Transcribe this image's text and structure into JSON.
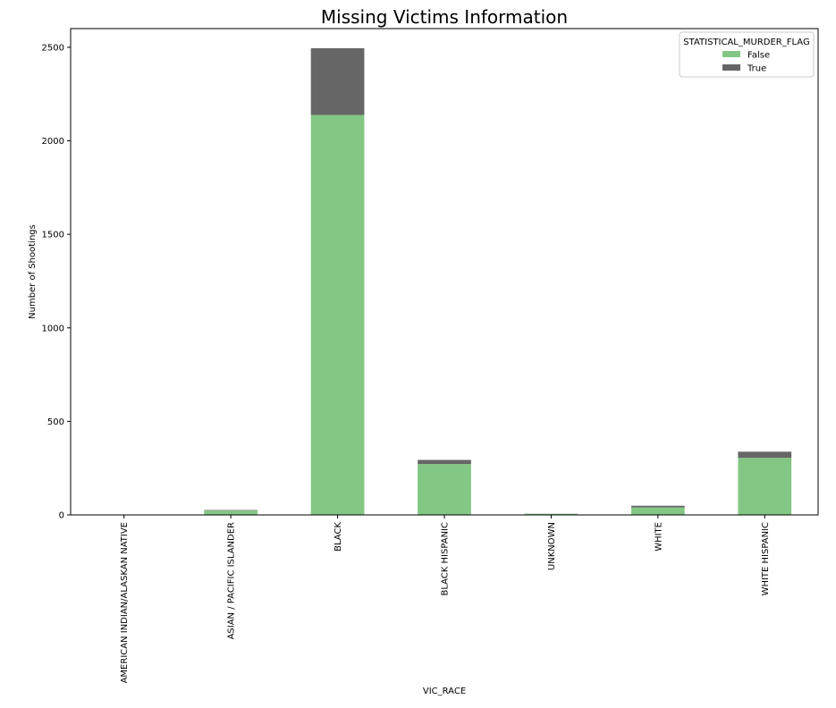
{
  "chart_data": {
    "type": "bar",
    "stacked": true,
    "title": "Missing Victims Information",
    "xlabel": "VIC_RACE",
    "ylabel": "Number of Shootings",
    "ylim": [
      0,
      2600
    ],
    "yticks": [
      0,
      500,
      1000,
      1500,
      2000,
      2500
    ],
    "grid": false,
    "legend_position": "top-right",
    "legend_title": "STATISTICAL_MURDER_FLAG",
    "categories": [
      "AMERICAN INDIAN/ALASKAN NATIVE",
      "ASIAN / PACIFIC ISLANDER",
      "BLACK",
      "BLACK HISPANIC",
      "UNKNOWN",
      "WHITE",
      "WHITE HISPANIC"
    ],
    "series": [
      {
        "name": "False",
        "color": "#82c884",
        "values": [
          1,
          23,
          2138,
          272,
          5,
          40,
          305
        ]
      },
      {
        "name": "True",
        "color": "#666666",
        "values": [
          0,
          3,
          357,
          22,
          1,
          9,
          33
        ]
      }
    ]
  }
}
